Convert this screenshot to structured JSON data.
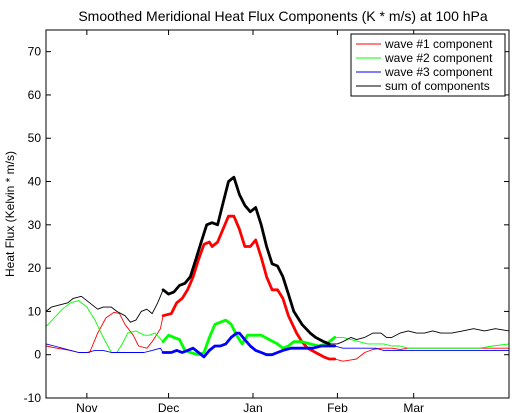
{
  "chart_data": {
    "type": "line",
    "title": "Smoothed Meridional Heat Flux Components (K * m/s) at 100 hPa",
    "xlabel": "",
    "ylabel": "Heat Flux (Kelvin * m/s)",
    "xlim": [
      1,
      171
    ],
    "ylim": [
      -10,
      75
    ],
    "yticks": [
      -10,
      0,
      10,
      20,
      30,
      40,
      50,
      60,
      70
    ],
    "xticks": [
      {
        "label": "Nov",
        "day": 16
      },
      {
        "label": "Dec",
        "day": 46
      },
      {
        "label": "Jan",
        "day": 77
      },
      {
        "label": "Feb",
        "day": 108
      },
      {
        "label": "Mar",
        "day": 136
      }
    ],
    "grid": false,
    "legend_position": "top-right",
    "highlight_range": [
      44,
      107
    ],
    "series": [
      {
        "name": "wave #1 component",
        "color": "#ff0000",
        "points": [
          [
            1,
            2
          ],
          [
            5,
            1.5
          ],
          [
            10,
            1
          ],
          [
            13,
            0.5
          ],
          [
            17,
            0.5
          ],
          [
            20,
            5
          ],
          [
            23,
            8.5
          ],
          [
            26,
            9.8
          ],
          [
            28,
            9.5
          ],
          [
            30,
            7
          ],
          [
            33,
            4.5
          ],
          [
            35,
            2
          ],
          [
            38,
            1.5
          ],
          [
            40,
            3
          ],
          [
            43,
            6
          ],
          [
            44,
            9
          ],
          [
            47,
            9.5
          ],
          [
            49,
            12
          ],
          [
            51,
            13
          ],
          [
            53,
            15
          ],
          [
            55,
            18
          ],
          [
            57,
            22
          ],
          [
            59,
            25.5
          ],
          [
            61,
            26
          ],
          [
            62,
            25
          ],
          [
            64,
            26
          ],
          [
            66,
            29
          ],
          [
            68,
            32
          ],
          [
            70,
            32
          ],
          [
            72,
            29
          ],
          [
            74,
            25
          ],
          [
            76,
            25
          ],
          [
            78,
            26.5
          ],
          [
            80,
            22.5
          ],
          [
            82,
            18
          ],
          [
            84,
            15
          ],
          [
            86,
            15
          ],
          [
            88,
            13
          ],
          [
            90,
            9
          ],
          [
            93,
            5
          ],
          [
            95,
            3
          ],
          [
            97,
            1.5
          ],
          [
            100,
            0.5
          ],
          [
            103,
            -0.5
          ],
          [
            105,
            -1
          ],
          [
            107,
            -1
          ],
          [
            110,
            -1.5
          ],
          [
            113,
            -1.2
          ],
          [
            115,
            -1
          ],
          [
            118,
            0.5
          ],
          [
            121,
            1.2
          ],
          [
            124,
            1.5
          ],
          [
            128,
            1.5
          ],
          [
            131,
            1.2
          ],
          [
            134,
            1.5
          ],
          [
            138,
            1.5
          ],
          [
            142,
            1.5
          ],
          [
            145,
            1.5
          ],
          [
            150,
            1.5
          ],
          [
            155,
            1.5
          ],
          [
            160,
            1.5
          ],
          [
            165,
            1.5
          ],
          [
            171,
            1.5
          ]
        ]
      },
      {
        "name": "wave #2 component",
        "color": "#00ff00",
        "points": [
          [
            1,
            6.5
          ],
          [
            4,
            8.5
          ],
          [
            7,
            10.5
          ],
          [
            10,
            12
          ],
          [
            13,
            12.5
          ],
          [
            16,
            11
          ],
          [
            19,
            8
          ],
          [
            22,
            4
          ],
          [
            25,
            0.5
          ],
          [
            27,
            0.5
          ],
          [
            29,
            2.5
          ],
          [
            31,
            5
          ],
          [
            34,
            5.5
          ],
          [
            37,
            4.5
          ],
          [
            39,
            4.5
          ],
          [
            41,
            5
          ],
          [
            44,
            3
          ],
          [
            46,
            4.5
          ],
          [
            48,
            4
          ],
          [
            50,
            3.5
          ],
          [
            52,
            1
          ],
          [
            54,
            0.5
          ],
          [
            57,
            0
          ],
          [
            59,
            0.5
          ],
          [
            61,
            4
          ],
          [
            63,
            7
          ],
          [
            65,
            7.5
          ],
          [
            67,
            8
          ],
          [
            69,
            7
          ],
          [
            71,
            4.5
          ],
          [
            73,
            2.5
          ],
          [
            75,
            4.5
          ],
          [
            78,
            4.5
          ],
          [
            80,
            4.5
          ],
          [
            83,
            3.5
          ],
          [
            86,
            2.5
          ],
          [
            88,
            1.5
          ],
          [
            90,
            2
          ],
          [
            92,
            3
          ],
          [
            95,
            3
          ],
          [
            98,
            2.5
          ],
          [
            101,
            2
          ],
          [
            104,
            2.5
          ],
          [
            107,
            4
          ],
          [
            110,
            4
          ],
          [
            113,
            3.5
          ],
          [
            116,
            3
          ],
          [
            119,
            2.5
          ],
          [
            122,
            2.5
          ],
          [
            125,
            2.5
          ],
          [
            128,
            2
          ],
          [
            131,
            2
          ],
          [
            134,
            1.5
          ],
          [
            137,
            1.5
          ],
          [
            140,
            1.5
          ],
          [
            145,
            1.5
          ],
          [
            150,
            1.5
          ],
          [
            155,
            1.5
          ],
          [
            160,
            1.5
          ],
          [
            165,
            2
          ],
          [
            171,
            2.5
          ]
        ]
      },
      {
        "name": "wave #3 component",
        "color": "#0000ff",
        "points": [
          [
            1,
            2.5
          ],
          [
            4,
            2
          ],
          [
            7,
            1.5
          ],
          [
            10,
            1
          ],
          [
            13,
            0.5
          ],
          [
            16,
            0.5
          ],
          [
            19,
            1
          ],
          [
            22,
            1
          ],
          [
            25,
            0.5
          ],
          [
            28,
            0.5
          ],
          [
            31,
            0.5
          ],
          [
            34,
            0.5
          ],
          [
            37,
            0.5
          ],
          [
            40,
            1
          ],
          [
            43,
            1.5
          ],
          [
            44,
            0.5
          ],
          [
            47,
            0.5
          ],
          [
            49,
            1
          ],
          [
            51,
            0.5
          ],
          [
            53,
            1
          ],
          [
            55,
            1.5
          ],
          [
            57,
            0.5
          ],
          [
            59,
            -0.5
          ],
          [
            61,
            1
          ],
          [
            63,
            2
          ],
          [
            65,
            2
          ],
          [
            67,
            2.5
          ],
          [
            69,
            4
          ],
          [
            71,
            5
          ],
          [
            72,
            5
          ],
          [
            74,
            3.5
          ],
          [
            76,
            2
          ],
          [
            78,
            1
          ],
          [
            80,
            0.5
          ],
          [
            82,
            0
          ],
          [
            84,
            0
          ],
          [
            86,
            0.5
          ],
          [
            88,
            1
          ],
          [
            91,
            1.5
          ],
          [
            93,
            1.5
          ],
          [
            96,
            1.5
          ],
          [
            99,
            1.5
          ],
          [
            102,
            2
          ],
          [
            105,
            2
          ],
          [
            107,
            2
          ],
          [
            110,
            1.5
          ],
          [
            113,
            1.5
          ],
          [
            116,
            1.5
          ],
          [
            119,
            1.5
          ],
          [
            122,
            1.5
          ],
          [
            125,
            1
          ],
          [
            128,
            1
          ],
          [
            131,
            1
          ],
          [
            134,
            1
          ],
          [
            138,
            1
          ],
          [
            142,
            1
          ],
          [
            146,
            1
          ],
          [
            150,
            1
          ],
          [
            155,
            1
          ],
          [
            160,
            1
          ],
          [
            165,
            1
          ],
          [
            171,
            1
          ]
        ]
      },
      {
        "name": "sum of components",
        "color": "#000000",
        "points": [
          [
            1,
            10
          ],
          [
            3,
            11
          ],
          [
            6,
            11.5
          ],
          [
            9,
            12
          ],
          [
            11,
            13
          ],
          [
            14,
            13.5
          ],
          [
            17,
            12
          ],
          [
            20,
            10.5
          ],
          [
            22,
            11
          ],
          [
            25,
            11
          ],
          [
            27,
            10
          ],
          [
            30,
            9
          ],
          [
            32,
            7.5
          ],
          [
            34,
            8
          ],
          [
            36,
            10
          ],
          [
            38,
            10.5
          ],
          [
            40,
            9.5
          ],
          [
            42,
            12
          ],
          [
            44,
            15
          ],
          [
            46,
            14
          ],
          [
            48,
            14.5
          ],
          [
            50,
            16
          ],
          [
            52,
            16.5
          ],
          [
            54,
            18
          ],
          [
            56,
            22
          ],
          [
            58,
            26
          ],
          [
            60,
            30
          ],
          [
            62,
            30.5
          ],
          [
            64,
            30
          ],
          [
            66,
            35
          ],
          [
            68,
            40
          ],
          [
            70,
            41
          ],
          [
            72,
            37
          ],
          [
            74,
            34.5
          ],
          [
            76,
            33
          ],
          [
            78,
            34
          ],
          [
            80,
            30
          ],
          [
            82,
            25
          ],
          [
            84,
            21
          ],
          [
            86,
            20.5
          ],
          [
            88,
            18
          ],
          [
            90,
            14
          ],
          [
            92,
            10
          ],
          [
            95,
            7
          ],
          [
            98,
            5
          ],
          [
            100,
            4
          ],
          [
            103,
            3
          ],
          [
            105,
            2.5
          ],
          [
            108,
            2.5
          ],
          [
            110,
            3
          ],
          [
            113,
            4
          ],
          [
            115,
            3.5
          ],
          [
            118,
            4
          ],
          [
            121,
            5
          ],
          [
            124,
            5
          ],
          [
            126,
            4
          ],
          [
            128,
            4
          ],
          [
            131,
            5
          ],
          [
            134,
            5.5
          ],
          [
            137,
            5
          ],
          [
            140,
            5
          ],
          [
            143,
            5.5
          ],
          [
            146,
            5
          ],
          [
            150,
            5
          ],
          [
            154,
            5.5
          ],
          [
            158,
            6
          ],
          [
            162,
            5.5
          ],
          [
            166,
            6
          ],
          [
            171,
            5.5
          ]
        ]
      }
    ]
  }
}
